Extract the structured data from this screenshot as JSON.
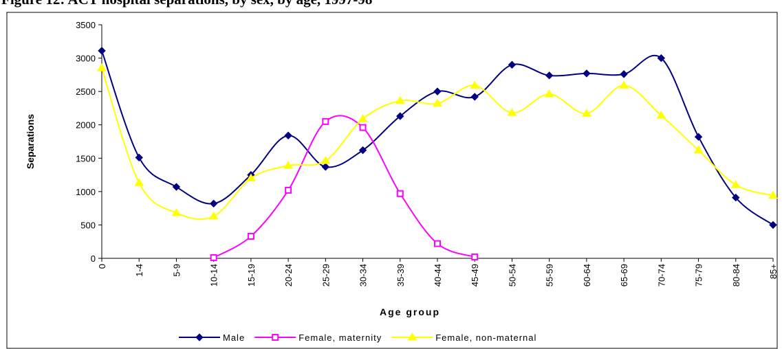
{
  "chart_data": {
    "type": "line",
    "title": "Figure 12:  ACT hospital separations, by sex, by age, 1997-98",
    "x_label": "Age group",
    "y_label": "Separations",
    "categories": [
      "0",
      "1-4",
      "5-9",
      "10-14",
      "15-19",
      "20-24",
      "25-29",
      "30-34",
      "35-39",
      "40-44",
      "45-49",
      "50-54",
      "55-59",
      "60-64",
      "65-69",
      "70-74",
      "75-79",
      "80-84",
      "85+"
    ],
    "series": [
      {
        "name": "Male",
        "color": "#000080",
        "marker": "diamond",
        "values": [
          3110,
          1510,
          1070,
          820,
          1250,
          1840,
          1370,
          1620,
          2130,
          2500,
          2420,
          2900,
          2740,
          2770,
          2760,
          3000,
          1820,
          910,
          500
        ]
      },
      {
        "name": "Female, maternity",
        "color": "#ff00ff",
        "marker": "square",
        "values": [
          null,
          null,
          null,
          10,
          330,
          1020,
          2050,
          1960,
          970,
          220,
          20,
          null,
          null,
          null,
          null,
          null,
          null,
          null,
          null
        ]
      },
      {
        "name": "Female, non-maternal",
        "color": "#ffff00",
        "marker": "triangle",
        "values": [
          2850,
          1130,
          680,
          630,
          1200,
          1390,
          1460,
          2090,
          2360,
          2320,
          2590,
          2180,
          2460,
          2170,
          2590,
          2140,
          1620,
          1100,
          940
        ]
      }
    ],
    "ylim": [
      0,
      3500
    ],
    "yticks": [
      0,
      500,
      1000,
      1500,
      2000,
      2500,
      3000,
      3500
    ],
    "smooth": true,
    "legend": "bottom"
  }
}
